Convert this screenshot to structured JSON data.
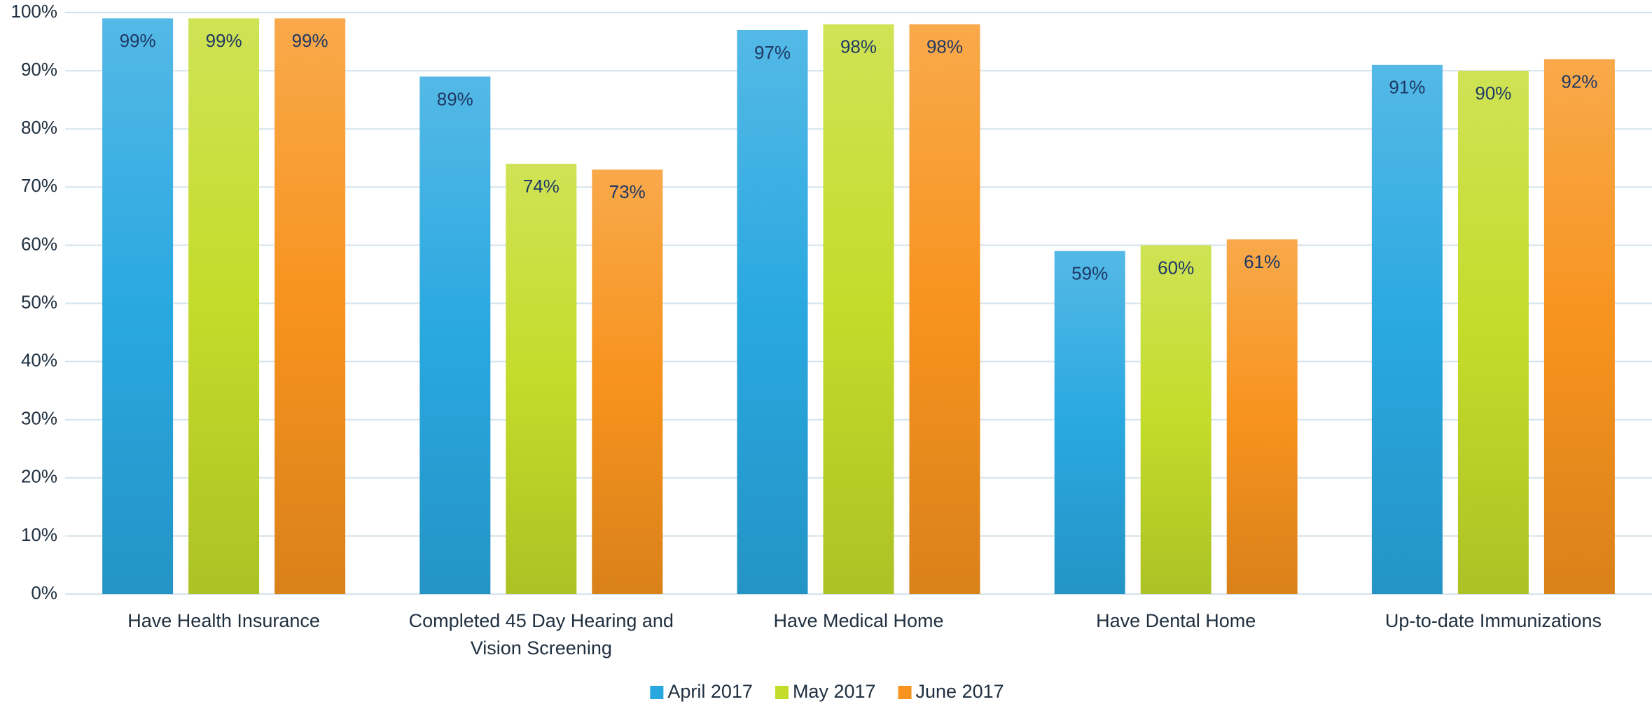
{
  "chart_data": {
    "type": "bar",
    "categories": [
      "Have Health Insurance",
      "Completed 45 Day Hearing and Vision Screening",
      "Have Medical Home",
      "Have Dental Home",
      "Up-to-date Immunizations"
    ],
    "series": [
      {
        "name": "April 2017",
        "color": "#29a8e0",
        "values": [
          99,
          89,
          97,
          59,
          91
        ],
        "value_labels": [
          "99%",
          "89%",
          "97%",
          "59%",
          "91%"
        ]
      },
      {
        "name": "May 2017",
        "color": "#c3dc2a",
        "values": [
          99,
          74,
          98,
          60,
          90
        ],
        "value_labels": [
          "99%",
          "74%",
          "98%",
          "60%",
          "90%"
        ]
      },
      {
        "name": "June 2017",
        "color": "#f7931e",
        "values": [
          99,
          73,
          98,
          61,
          92
        ],
        "value_labels": [
          "99%",
          "73%",
          "98%",
          "61%",
          "92%"
        ]
      }
    ],
    "ylim": [
      0,
      100
    ],
    "yticks": [
      {
        "value": 0,
        "label": "0%"
      },
      {
        "value": 10,
        "label": "10%"
      },
      {
        "value": 20,
        "label": "20%"
      },
      {
        "value": 30,
        "label": "30%"
      },
      {
        "value": 40,
        "label": "40%"
      },
      {
        "value": 50,
        "label": "50%"
      },
      {
        "value": 60,
        "label": "60%"
      },
      {
        "value": 70,
        "label": "70%"
      },
      {
        "value": 80,
        "label": "80%"
      },
      {
        "value": 90,
        "label": "90%"
      },
      {
        "value": 100,
        "label": "100%"
      }
    ],
    "grid": true,
    "legend": "bottom"
  }
}
